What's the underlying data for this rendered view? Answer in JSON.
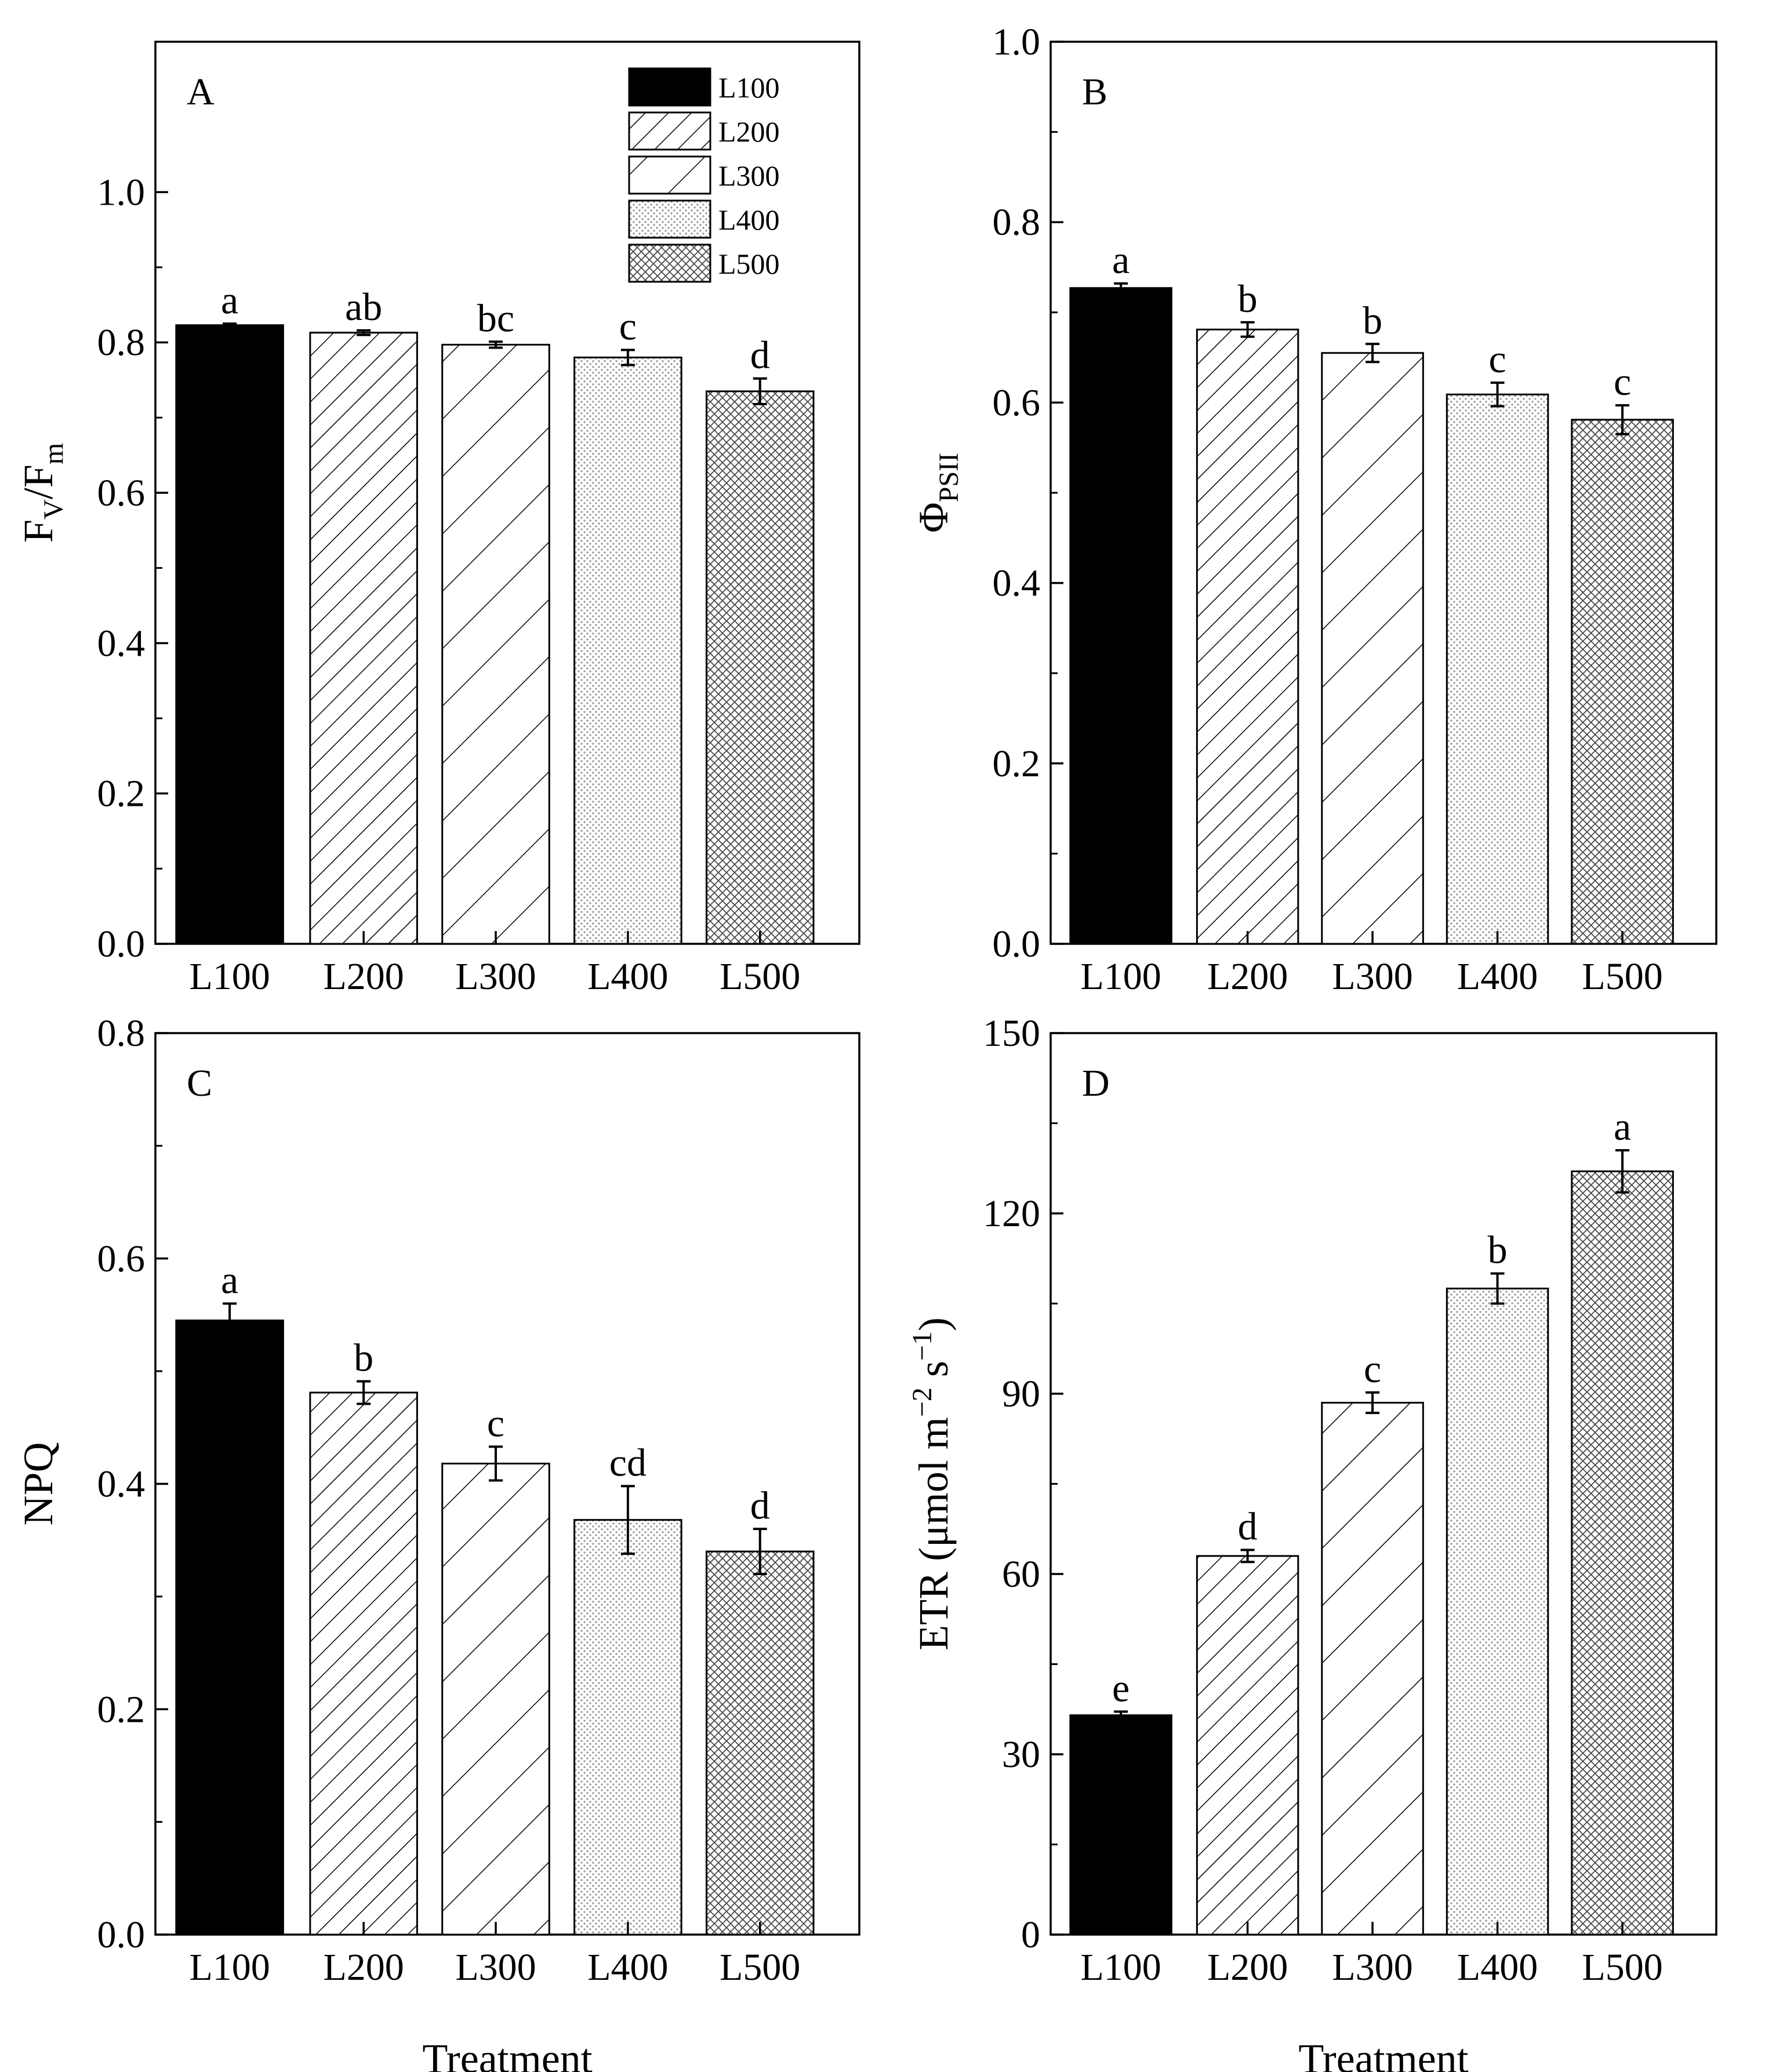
{
  "figure": {
    "treatment_series": [
      "L100",
      "L200",
      "L300",
      "L400",
      "L500"
    ],
    "legend": [
      {
        "label": "L100",
        "pattern": "solid"
      },
      {
        "label": "L200",
        "pattern": "dense-hatch"
      },
      {
        "label": "L300",
        "pattern": "sparse-hatch"
      },
      {
        "label": "L400",
        "pattern": "fine-dots"
      },
      {
        "label": "L500",
        "pattern": "crosshatch"
      }
    ]
  },
  "chart_data": [
    {
      "type": "bar",
      "panel": "A",
      "categories": [
        "L100",
        "L200",
        "L300",
        "L400",
        "L500"
      ],
      "values": [
        0.823,
        0.813,
        0.797,
        0.78,
        0.735
      ],
      "errors": [
        0.002,
        0.003,
        0.004,
        0.01,
        0.017
      ],
      "significance": [
        "a",
        "ab",
        "bc",
        "c",
        "d"
      ],
      "ylabel_main": "F",
      "ylabel_sub1": "V",
      "ylabel_mid": "/F",
      "ylabel_sub2": "m",
      "xlabel": "",
      "ylim": [
        0,
        1.2
      ],
      "yticks": [
        0.0,
        0.2,
        0.4,
        0.6,
        0.8,
        1.0
      ],
      "ytick_labels": [
        "0.0",
        "0.2",
        "0.4",
        "0.6",
        "0.8",
        "1.0"
      ],
      "legend_position": "top-right"
    },
    {
      "type": "bar",
      "panel": "B",
      "categories": [
        "L100",
        "L200",
        "L300",
        "L400",
        "L500"
      ],
      "values": [
        0.727,
        0.681,
        0.655,
        0.609,
        0.581
      ],
      "errors": [
        0.005,
        0.008,
        0.01,
        0.013,
        0.016
      ],
      "significance": [
        "a",
        "b",
        "b",
        "c",
        "c"
      ],
      "ylabel_main": "Φ",
      "ylabel_sub1": "PSII",
      "xlabel": "",
      "ylim": [
        0,
        1.0
      ],
      "yticks": [
        0.0,
        0.2,
        0.4,
        0.6,
        0.8,
        1.0
      ],
      "ytick_labels": [
        "0.0",
        "0.2",
        "0.4",
        "0.6",
        "0.8",
        "1.0"
      ]
    },
    {
      "type": "bar",
      "panel": "C",
      "categories": [
        "L100",
        "L200",
        "L300",
        "L400",
        "L500"
      ],
      "values": [
        0.545,
        0.481,
        0.418,
        0.368,
        0.34
      ],
      "errors": [
        0.015,
        0.01,
        0.015,
        0.03,
        0.02
      ],
      "significance": [
        "a",
        "b",
        "c",
        "cd",
        "d"
      ],
      "ylabel_main": "NPQ",
      "xlabel": "Treatment",
      "ylim": [
        0,
        0.8
      ],
      "yticks": [
        0.0,
        0.2,
        0.4,
        0.6,
        0.8
      ],
      "ytick_labels": [
        "0.0",
        "0.2",
        "0.4",
        "0.6",
        "0.8"
      ]
    },
    {
      "type": "bar",
      "panel": "D",
      "categories": [
        "L100",
        "L200",
        "L300",
        "L400",
        "L500"
      ],
      "values": [
        36.5,
        63.0,
        88.5,
        107.5,
        127.0
      ],
      "errors": [
        0.6,
        1.0,
        1.7,
        2.5,
        3.5
      ],
      "significance": [
        "e",
        "d",
        "c",
        "b",
        "a"
      ],
      "ylabel_main": "ETR (μmol m",
      "ylabel_sup1": "−2",
      "ylabel_mid": " s",
      "ylabel_sup2": "−1",
      "ylabel_end": ")",
      "xlabel": "Treatment",
      "ylim": [
        0,
        150
      ],
      "yticks": [
        0,
        30,
        60,
        90,
        120,
        150
      ],
      "ytick_labels": [
        "0",
        "30",
        "60",
        "90",
        "120",
        "150"
      ]
    }
  ]
}
